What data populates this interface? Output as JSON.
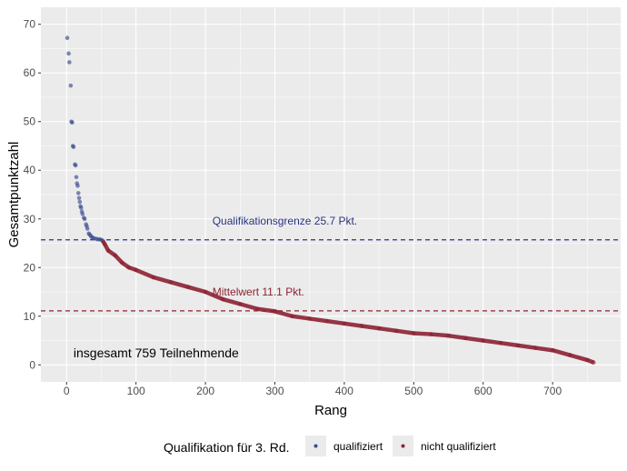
{
  "chart_data": {
    "type": "scatter",
    "xlabel": "Rang",
    "ylabel": "Gesamtpunktzahl",
    "xlim": [
      -37,
      798
    ],
    "ylim": [
      -3.5,
      73.5
    ],
    "xticks": [
      0,
      100,
      200,
      300,
      400,
      500,
      600,
      700
    ],
    "yticks": [
      0,
      10,
      20,
      30,
      40,
      50,
      60,
      70
    ],
    "grid": true,
    "legend": {
      "title": "Qualifikation für 3. Rd.",
      "placement": "bottom",
      "entries": [
        "qualifiziert",
        "nicht qualifiziert"
      ]
    },
    "colors": {
      "qualifiziert": "#3b4d8f",
      "nicht qualifiziert": "#8c2233",
      "panel": "#ebebeb"
    },
    "hlines": [
      {
        "y": 25.7,
        "label": "Qualifikationsgrenze 25.7 Pkt.",
        "color": "#2a3680",
        "label_x": 210
      },
      {
        "y": 11.1,
        "label": "Mittelwert 11.1 Pkt.",
        "color": "#8c2233",
        "label_x": 210
      }
    ],
    "annotation": {
      "text": "insgesamt 759 Teilnehmende",
      "x": 10,
      "y": 2.5
    },
    "series": [
      {
        "name": "qualifiziert",
        "x": [
          1,
          3,
          4,
          6,
          7,
          8,
          9,
          10,
          12,
          13,
          14,
          15,
          16,
          17,
          18,
          19,
          20,
          21,
          22,
          23,
          25,
          26,
          28,
          29,
          30,
          32,
          33,
          35,
          36,
          38,
          40,
          43,
          45,
          48,
          50
        ],
        "y": [
          67.2,
          64,
          62.2,
          57.4,
          50,
          49.8,
          45,
          44.8,
          41.2,
          41,
          38.6,
          37.3,
          36.8,
          35.3,
          34.3,
          33.5,
          32.6,
          32.3,
          31.5,
          31,
          30.2,
          30,
          28.9,
          28.5,
          28,
          27,
          26.8,
          26.5,
          26.3,
          26.1,
          26,
          25.9,
          25.8,
          25.8,
          25.7
        ]
      },
      {
        "name": "nicht qualifiziert",
        "x": [
          52,
          55,
          60,
          70,
          80,
          90,
          100,
          125,
          150,
          175,
          200,
          225,
          250,
          275,
          300,
          325,
          350,
          375,
          400,
          425,
          450,
          475,
          500,
          525,
          550,
          575,
          600,
          625,
          650,
          675,
          700,
          725,
          750,
          759
        ],
        "y": [
          25.5,
          24.8,
          23.5,
          22.5,
          21,
          20,
          19.5,
          18,
          17,
          16,
          15,
          13.5,
          12.5,
          11.5,
          11,
          10,
          9.5,
          9,
          8.5,
          8,
          7.5,
          7,
          6.5,
          6.3,
          6,
          5.5,
          5,
          4.5,
          4,
          3.5,
          3,
          2,
          1,
          0.5
        ]
      }
    ]
  }
}
